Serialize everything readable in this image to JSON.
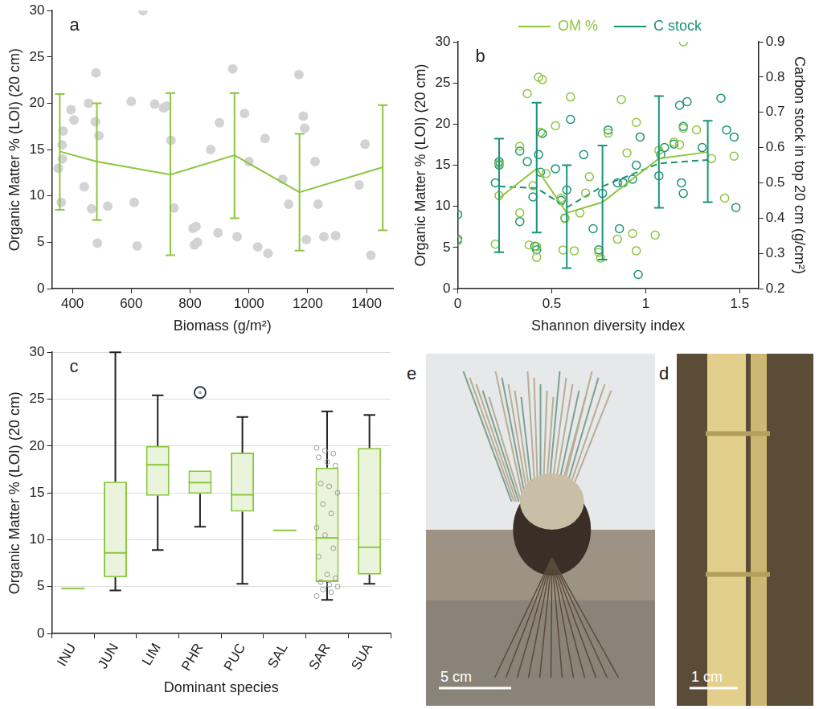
{
  "chart_data": [
    {
      "label": "a",
      "type": "scatter",
      "xlabel": "Biomass (g/m²)",
      "ylabel": "Organic Matter % (LOI) (20 cm)",
      "xlim": [
        330,
        1490
      ],
      "xticks": [
        400,
        600,
        800,
        1000,
        1200,
        1400
      ],
      "ylim": [
        0,
        30
      ],
      "yticks": [
        0,
        5,
        10,
        15,
        20,
        25,
        30
      ],
      "grid": false,
      "points": {
        "marker": "circle",
        "color": "#d3d3d3",
        "x": [
          352,
          365,
          368,
          366,
          362,
          395,
          405,
          440,
          455,
          465,
          480,
          478,
          485,
          490,
          520,
          600,
          610,
          620,
          640,
          680,
          710,
          720,
          735,
          745,
          810,
          815,
          820,
          825,
          870,
          895,
          900,
          945,
          960,
          985,
          1000,
          1030,
          1055,
          1065,
          1115,
          1135,
          1170,
          1185,
          1190,
          1195,
          1225,
          1235,
          1255,
          1295,
          1375,
          1395,
          1415
        ],
        "y": [
          13,
          15.5,
          17,
          14,
          9.3,
          19.3,
          18.2,
          11,
          20,
          8.6,
          23.3,
          18,
          4.9,
          16.5,
          8.9,
          20.2,
          9.3,
          4.6,
          30,
          19.9,
          19.5,
          19.7,
          16,
          8.7,
          6.5,
          4.7,
          6.7,
          5,
          15,
          6,
          17.9,
          23.7,
          5.6,
          18.9,
          13.7,
          4.5,
          16.2,
          3.8,
          11.8,
          9.1,
          23.1,
          18.6,
          17.3,
          5.3,
          13.7,
          9.1,
          5.6,
          5.7,
          11.2,
          15.6,
          3.6
        ]
      },
      "mean": {
        "color": "#8dc63f",
        "line_style": "solid",
        "x": [
          357,
          483,
          733,
          951,
          1172,
          1455
        ],
        "y": [
          14.8,
          13.7,
          12.3,
          14.4,
          10.4,
          13.1
        ],
        "error_low": [
          8.5,
          7.4,
          3.6,
          7.6,
          4.1,
          6.3
        ],
        "error_high": [
          21,
          20,
          21.1,
          21.1,
          16.7,
          19.8
        ]
      }
    },
    {
      "label": "b",
      "type": "scatter",
      "xlabel": "Shannon diversity index",
      "ylabel": "Organic Matter % (LOI) (20 cm)",
      "y2label": "Carbon stock in top 20 cm (g/cm²)",
      "xlim": [
        0,
        1.6
      ],
      "xticks": [
        0,
        0.5,
        1,
        1.5
      ],
      "ylim": [
        0,
        30
      ],
      "yticks": [
        0,
        5,
        10,
        15,
        20,
        25,
        30
      ],
      "y2lim": [
        0.2,
        0.9
      ],
      "y2ticks": [
        0.2,
        0.3,
        0.4,
        0.5,
        0.6,
        0.7,
        0.8,
        0.9
      ],
      "grid": false,
      "legend": "top",
      "series": [
        {
          "name": "OM %",
          "color": "#8dc63f",
          "axis": "y",
          "marker": "open circle",
          "line_style": "solid",
          "points": {
            "x": [
              0,
              0.2,
              0.22,
              0.22,
              0.33,
              0.33,
              0.37,
              0.38,
              0.4,
              0.42,
              0.43,
              0.45,
              0.44,
              0.42,
              0.47,
              0.52,
              0.55,
              0.56,
              0.57,
              0.6,
              0.62,
              0.65,
              0.68,
              0.7,
              0.75,
              0.76,
              0.8,
              0.87,
              0.85,
              0.9,
              0.93,
              0.95,
              0.95,
              1.05,
              1.07,
              1.15,
              1.18,
              1.2,
              1.2,
              1.27,
              1.35,
              1.42,
              1.47
            ],
            "y": [
              5.8,
              5.4,
              15.2,
              11.3,
              17.3,
              9.2,
              23.7,
              5.3,
              12.5,
              5.1,
              25.7,
              25.4,
              19,
              3.8,
              14,
              19.8,
              11,
              4.7,
              8.5,
              23.3,
              4.6,
              9.2,
              11.6,
              13.6,
              4.4,
              3.7,
              18.9,
              23,
              6,
              16.5,
              6.7,
              20.2,
              4.6,
              6.5,
              16.8,
              17.8,
              17.5,
              30,
              19.5,
              19.3,
              15.8,
              11,
              16.1
            ]
          },
          "mean": {
            "x": [
              0.22,
              0.42,
              0.58,
              0.77,
              1.07,
              1.33
            ],
            "y": [
              11,
              14.6,
              9.2,
              10.5,
              15.8,
              16.6
            ]
          }
        },
        {
          "name": "C stock",
          "color": "#1a9477",
          "axis": "y2",
          "marker": "open circle",
          "line_style": "dashed",
          "points": {
            "x": [
              0,
              0,
              0.2,
              0.22,
              0.22,
              0.33,
              0.33,
              0.37,
              0.4,
              0.41,
              0.42,
              0.43,
              0.44,
              0.45,
              0.52,
              0.55,
              0.57,
              0.58,
              0.6,
              0.67,
              0.72,
              0.75,
              0.77,
              0.8,
              0.85,
              0.86,
              0.88,
              0.93,
              0.95,
              0.96,
              0.97,
              1.07,
              1.08,
              1.1,
              1.15,
              1.18,
              1.19,
              1.2,
              1.2,
              1.22,
              1.3,
              1.4,
              1.43,
              1.47,
              1.48
            ],
            "y": [
              0.41,
              0.34,
              0.5,
              0.56,
              0.55,
              0.59,
              0.39,
              0.56,
              0.46,
              0.32,
              0.31,
              0.58,
              0.53,
              0.64,
              0.54,
              0.45,
              0.4,
              0.48,
              0.68,
              0.58,
              0.37,
              0.31,
              0.47,
              0.65,
              0.5,
              0.37,
              0.5,
              0.51,
              0.55,
              0.24,
              0.63,
              0.52,
              0.58,
              0.6,
              0.61,
              0.72,
              0.5,
              0.66,
              0.47,
              0.73,
              0.6,
              0.74,
              0.65,
              0.63,
              0.43
            ]
          },
          "mean": {
            "x": [
              0.22,
              0.42,
              0.58,
              0.77,
              1.07,
              1.33
            ],
            "y": [
              0.49,
              0.485,
              0.43,
              0.49,
              0.555,
              0.565
            ],
            "error_low": [
              0.303,
              0.359,
              0.258,
              0.282,
              0.429,
              0.445
            ],
            "error_high": [
              0.625,
              0.727,
              0.55,
              0.606,
              0.746,
              0.676
            ]
          }
        }
      ]
    },
    {
      "label": "c",
      "type": "box",
      "xlabel": "Dominant species",
      "ylabel": "Organic Matter % (LOI) (20 cm)",
      "categories": [
        "INU",
        "JUN",
        "LIM",
        "PHR",
        "PUC",
        "SAL",
        "SAR",
        "SUA"
      ],
      "ylim": [
        0,
        30
      ],
      "yticks": [
        0,
        5,
        10,
        15,
        20,
        25,
        30
      ],
      "grid": true,
      "color": "#8dc63f",
      "min": [
        4.8,
        4.6,
        8.9,
        11.4,
        5.3,
        11,
        3.6,
        5.3
      ],
      "q1": [
        4.8,
        6,
        14.7,
        14.9,
        13,
        11,
        5.5,
        6.3
      ],
      "median": [
        4.8,
        8.6,
        18,
        16.1,
        14.8,
        11,
        10.2,
        9.2
      ],
      "q3": [
        4.8,
        16.2,
        20,
        17.4,
        19.3,
        11,
        17.7,
        19.8
      ],
      "max": [
        4.8,
        30,
        25.4,
        17.4,
        23.1,
        11,
        23.7,
        23.3
      ],
      "outliers": [
        [],
        [],
        [],
        [
          25.7
        ],
        [],
        [],
        [],
        []
      ],
      "points": [
        [],
        [],
        [],
        [],
        [],
        [],
        [
          19.8,
          19.5,
          19.2,
          18.8,
          18.3,
          17.9,
          16,
          15.7,
          15,
          13.8,
          12.8,
          11.3,
          10.5,
          9.1,
          8.2,
          6.3,
          5.9,
          5.5,
          5.2,
          5,
          4.7,
          4.4,
          4
        ],
        []
      ]
    }
  ],
  "photos": [
    {
      "label": "e",
      "scale_bar": "5 cm"
    },
    {
      "label": "d",
      "scale_bar": "1 cm"
    }
  ]
}
